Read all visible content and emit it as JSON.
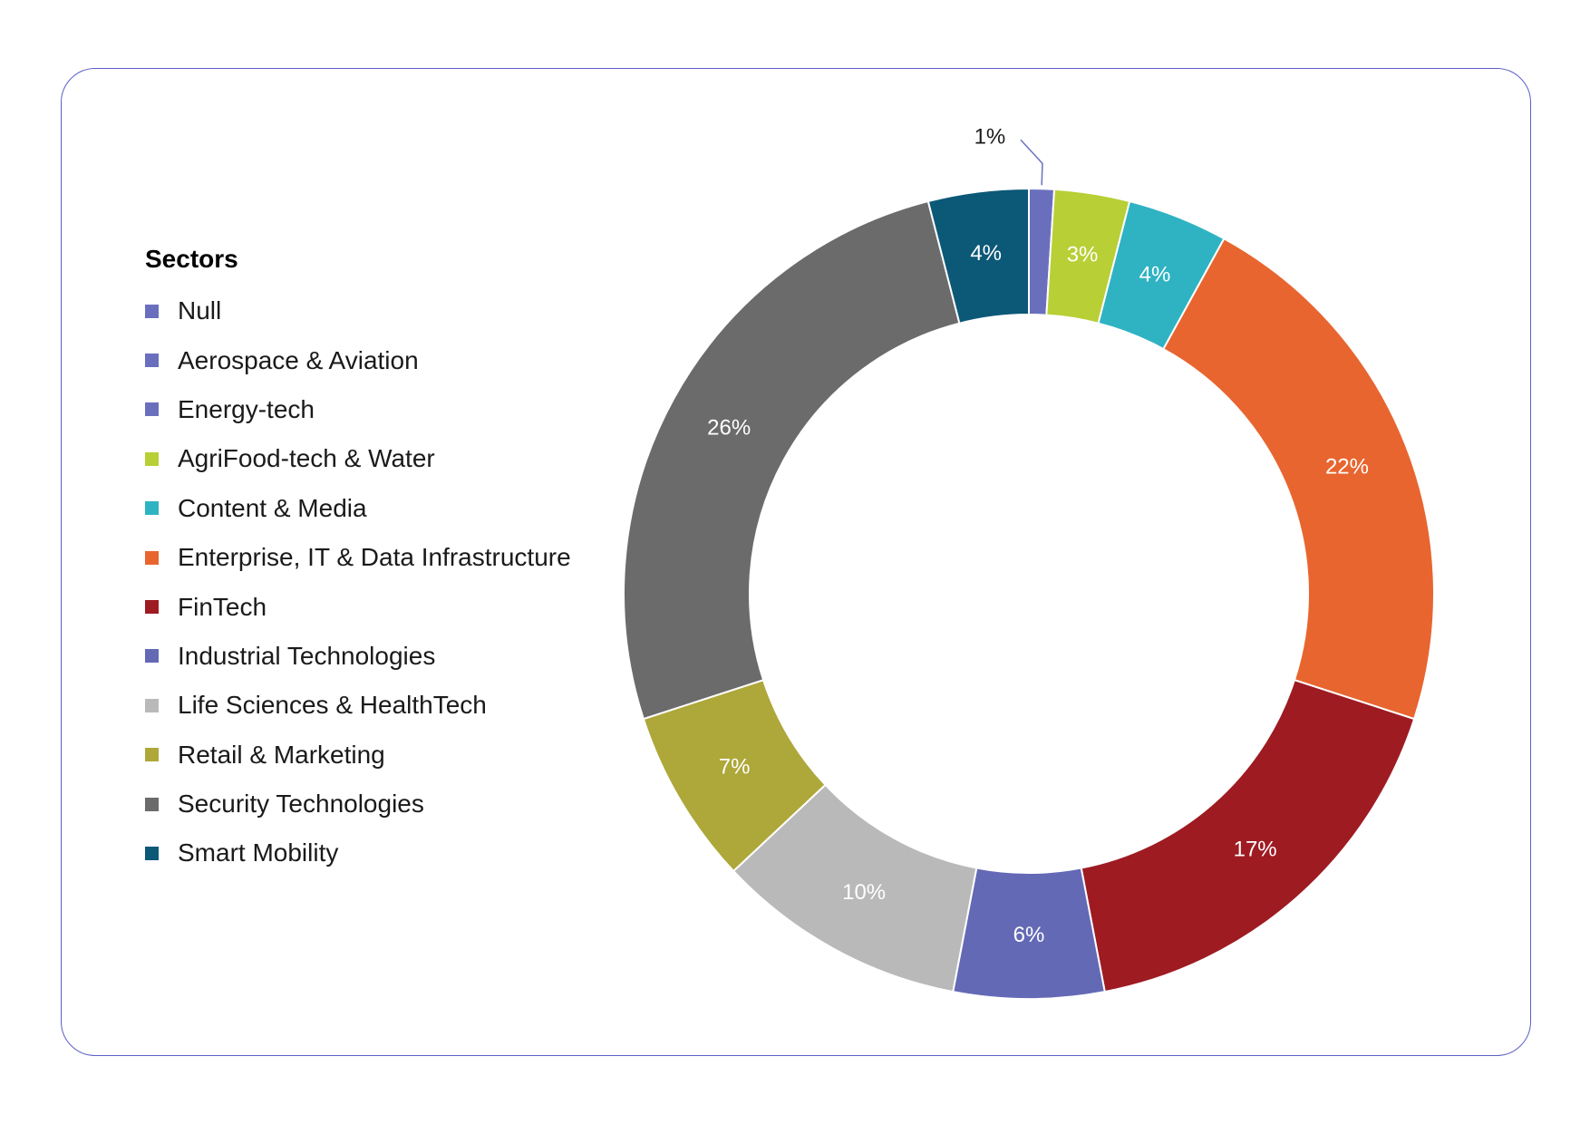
{
  "chart_data": {
    "type": "pie",
    "legend_title": "Sectors",
    "legend_position": "left",
    "categories": [
      "Null",
      "Aerospace & Aviation",
      "Energy-tech",
      "AgriFood-tech & Water",
      "Content & Media",
      "Enterprise, IT & Data Infrastructure",
      "FinTech",
      "Industrial Technologies",
      "Life Sciences & HealthTech",
      "Retail & Marketing",
      "Security Technologies",
      "Smart Mobility"
    ],
    "colors": [
      "#6a6fbd",
      "#6a6fbd",
      "#6a6fbd",
      "#b8cf35",
      "#2fb3c2",
      "#e8652f",
      "#9e1b22",
      "#6369b5",
      "#b9b9b9",
      "#aea73a",
      "#6b6b6b",
      "#0c5877"
    ],
    "values": [
      0,
      0,
      1,
      3,
      4,
      22,
      17,
      6,
      10,
      7,
      26,
      4
    ],
    "data_labels": [
      "",
      "",
      "1%",
      "3%",
      "4%",
      "22%",
      "17%",
      "6%",
      "10%",
      "7%",
      "26%",
      "4%"
    ]
  }
}
